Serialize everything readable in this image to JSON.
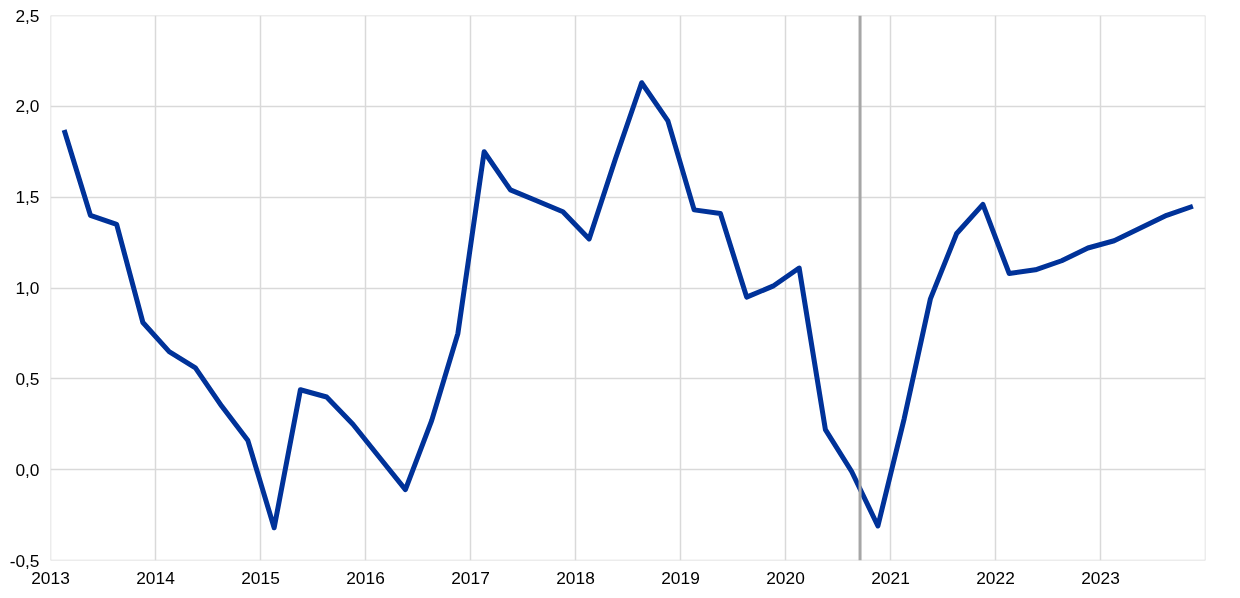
{
  "chart_data": {
    "type": "line",
    "x": [
      2013.13,
      2013.38,
      2013.63,
      2013.88,
      2014.13,
      2014.38,
      2014.63,
      2014.88,
      2015.13,
      2015.38,
      2015.63,
      2015.88,
      2016.13,
      2016.38,
      2016.63,
      2016.88,
      2017.13,
      2017.38,
      2017.63,
      2017.88,
      2018.13,
      2018.38,
      2018.63,
      2018.88,
      2019.13,
      2019.38,
      2019.63,
      2019.88,
      2020.13,
      2020.38,
      2020.63,
      2020.88,
      2021.13,
      2021.38,
      2021.63,
      2021.88,
      2022.13,
      2022.38,
      2022.63,
      2022.88,
      2023.13,
      2023.38,
      2023.63,
      2023.88
    ],
    "series": [
      {
        "color": "#003299",
        "values": [
          1.87,
          1.4,
          1.35,
          0.81,
          0.65,
          0.56,
          0.35,
          0.16,
          -0.32,
          0.44,
          0.4,
          0.25,
          0.07,
          -0.11,
          0.27,
          0.75,
          1.75,
          1.54,
          1.48,
          1.42,
          1.27,
          1.71,
          2.13,
          1.92,
          1.43,
          1.41,
          0.95,
          1.01,
          1.11,
          0.22,
          -0.01,
          -0.31,
          0.28,
          0.94,
          1.3,
          1.46,
          1.08,
          1.1,
          1.15,
          1.22,
          1.26,
          1.33,
          1.4,
          1.45
        ]
      }
    ],
    "xlim": [
      2013,
      2024
    ],
    "xticks": [
      2013,
      2014,
      2015,
      2016,
      2017,
      2018,
      2019,
      2020,
      2021,
      2022,
      2023,
      {
        "value": 2024,
        "label": null
      }
    ],
    "ylim": [
      -0.5,
      2.5
    ],
    "yticks": [
      {
        "value": -0.5,
        "label": "-0,5"
      },
      {
        "value": 0,
        "label": "0,0"
      },
      {
        "value": 0.5,
        "label": "0,5"
      },
      {
        "value": 1,
        "label": "1,0"
      },
      {
        "value": 1.5,
        "label": "1,5"
      },
      {
        "value": 2,
        "label": "2,0"
      },
      {
        "value": 2.5,
        "label": "2,5"
      }
    ],
    "ref_lines": [
      {
        "axis": "x",
        "value": 2020.71,
        "color": "#a6a6a6"
      }
    ],
    "grid": true,
    "marker": "none",
    "line_style": "solid"
  }
}
